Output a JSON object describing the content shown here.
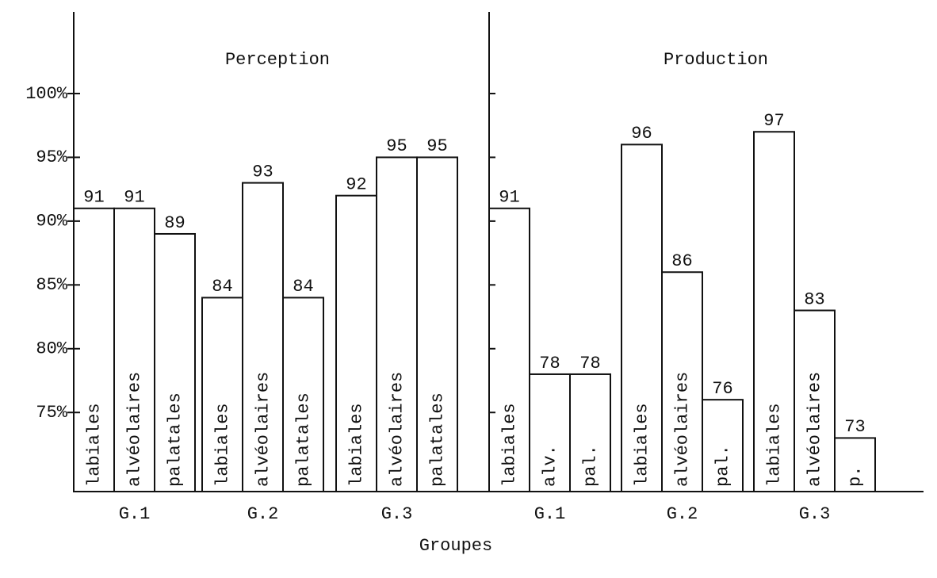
{
  "xlabel": "Groupes",
  "chart_data": [
    {
      "type": "bar",
      "title": "Perception",
      "categories": [
        "G.1",
        "G.2",
        "G.3"
      ],
      "series": [
        {
          "labels": [
            "labiales",
            "labiales",
            "labiales"
          ],
          "values": [
            91,
            84,
            92
          ]
        },
        {
          "labels": [
            "alvéolaires",
            "alvéolaires",
            "alvéolaires"
          ],
          "values": [
            91,
            93,
            95
          ]
        },
        {
          "labels": [
            "palatales",
            "palatales",
            "palatales"
          ],
          "values": [
            89,
            84,
            95
          ]
        }
      ],
      "color": "#111111",
      "ylim": [
        68.8,
        106.4
      ],
      "yticks": [
        {
          "value": 75,
          "label": "75%"
        },
        {
          "value": 80,
          "label": "80%"
        },
        {
          "value": 85,
          "label": "85%"
        },
        {
          "value": 90,
          "label": "90%"
        },
        {
          "value": 95,
          "label": "95%"
        },
        {
          "value": 100,
          "label": "100%"
        }
      ]
    },
    {
      "type": "bar",
      "title": "Production",
      "categories": [
        "G.1",
        "G.2",
        "G.3"
      ],
      "series": [
        {
          "labels": [
            "labiales",
            "labiales",
            "labiales"
          ],
          "values": [
            91,
            96,
            97
          ]
        },
        {
          "labels": [
            "alv.",
            "alvéolaires",
            "alvéolaires"
          ],
          "values": [
            78,
            86,
            83
          ]
        },
        {
          "labels": [
            "pal.",
            "pal.",
            "p."
          ],
          "values": [
            78,
            76,
            73
          ]
        }
      ],
      "color": "#111111",
      "ylim": [
        68.8,
        106.4
      ],
      "yticks": [
        75,
        80,
        85,
        90,
        95,
        100
      ],
      "show_ytick_labels": false
    }
  ]
}
